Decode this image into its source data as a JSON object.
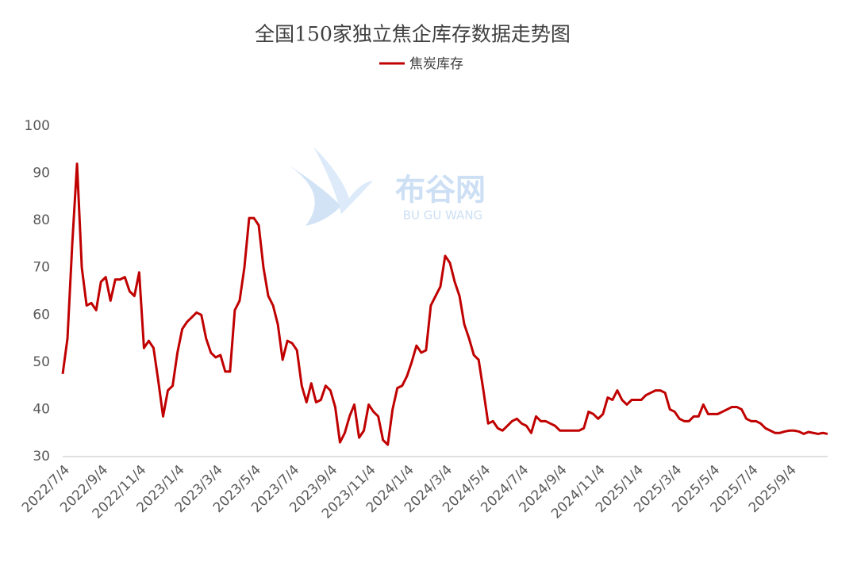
{
  "chart_data": {
    "type": "line",
    "title": "全国150家独立焦企库存数据走势图",
    "watermark": [
      "布谷网",
      "BU GU WANG"
    ],
    "categories": [
      "2022/7/4",
      null,
      null,
      null,
      null,
      null,
      null,
      null,
      "2022/9/4",
      null,
      null,
      null,
      null,
      null,
      null,
      null,
      "2022/11/4",
      null,
      null,
      null,
      null,
      null,
      null,
      null,
      "2023/1/4",
      null,
      null,
      null,
      null,
      null,
      null,
      null,
      "2023/3/4",
      null,
      null,
      null,
      null,
      null,
      null,
      null,
      "2023/5/4",
      null,
      null,
      null,
      null,
      null,
      null,
      null,
      "2023/7/4",
      null,
      null,
      null,
      null,
      null,
      null,
      null,
      "2023/9/4",
      null,
      null,
      null,
      null,
      null,
      null,
      null,
      "2023/11/4",
      null,
      null,
      null,
      null,
      null,
      null,
      null,
      "2024/1/4",
      null,
      null,
      null,
      null,
      null,
      null,
      null,
      "2024/3/4",
      null,
      null,
      null,
      null,
      null,
      null,
      null,
      "2024/5/4",
      null,
      null,
      null,
      null,
      null,
      null,
      null,
      "2024/7/4",
      null,
      null,
      null,
      null,
      null,
      null,
      null,
      "2024/9/4",
      null,
      null,
      null,
      null,
      null,
      null,
      null,
      "2024/11/4",
      null,
      null,
      null,
      null,
      null,
      null,
      null,
      "2025/1/4",
      null,
      null,
      null,
      null,
      null,
      null,
      null,
      "2025/3/4",
      null,
      null,
      null,
      null,
      null,
      null,
      null,
      "2025/5/4",
      null,
      null,
      null,
      null,
      null,
      null,
      null,
      "2025/7/4",
      null,
      null,
      null,
      null,
      null,
      null,
      null,
      "2025/9/4",
      null,
      null,
      null,
      null,
      null,
      null,
      null,
      null
    ],
    "series": [
      {
        "name": "焦炭库存",
        "color": "#c00000",
        "values": [
          47.5,
          55,
          75,
          92,
          70,
          62,
          62.5,
          61,
          67,
          68,
          63,
          67.5,
          67.5,
          68,
          65,
          64,
          69,
          53,
          54.5,
          53,
          46,
          38.5,
          44,
          45,
          52,
          57,
          58.5,
          59.5,
          60.5,
          60,
          55,
          52,
          51,
          51.5,
          48,
          48,
          61,
          63,
          70,
          80.5,
          80.5,
          79,
          70,
          64,
          62,
          58,
          50.5,
          54.5,
          54,
          52.5,
          45,
          41.5,
          45.5,
          41.5,
          42,
          45,
          44,
          40.5,
          33,
          35,
          38.5,
          41,
          34,
          35.5,
          41,
          39.5,
          38.5,
          33.5,
          32.5,
          40,
          44.5,
          45,
          47,
          50,
          53.5,
          52,
          52.5,
          62,
          64,
          66,
          72.5,
          71,
          67,
          64,
          58,
          55,
          51.5,
          50.5,
          44,
          37,
          37.5,
          36,
          35.5,
          36.5,
          37.5,
          38,
          37,
          36.5,
          35,
          38.5,
          37.5,
          37.5,
          37,
          36.5,
          35.5,
          35.5,
          35.5,
          35.5,
          35.5,
          36,
          39.5,
          39,
          38,
          39,
          42.5,
          42,
          44,
          42,
          41,
          42,
          42,
          42,
          43,
          43.5,
          44,
          44,
          43.5,
          40,
          39.5,
          38,
          37.5,
          37.5,
          38.5,
          38.5,
          41,
          39,
          39,
          39,
          39.5,
          40,
          40.5,
          40.5,
          40,
          38,
          37.5,
          37.5,
          37,
          36,
          35.5,
          35,
          35,
          35.3,
          35.5,
          35.5,
          35.3,
          34.8,
          35.2,
          35,
          34.8,
          35,
          34.8
        ]
      }
    ],
    "ylim": [
      30,
      100
    ],
    "yticks": [
      30,
      40,
      50,
      60,
      70,
      80,
      90,
      100
    ],
    "grid": false
  }
}
